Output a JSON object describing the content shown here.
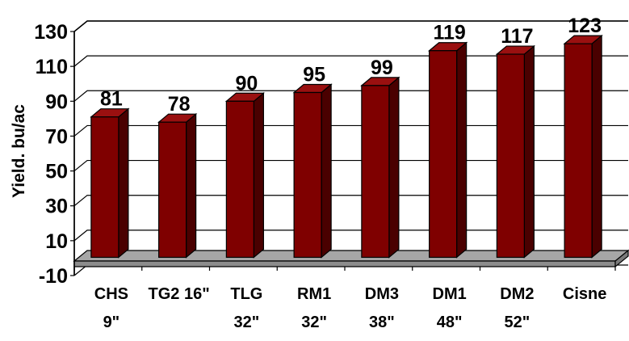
{
  "chart_data": {
    "type": "bar",
    "title": "",
    "xlabel": "",
    "ylabel": "Yield. bu/ac",
    "categories": [
      [
        "CHS",
        "9\""
      ],
      [
        "TG2 16\""
      ],
      [
        "TLG",
        "32\""
      ],
      [
        "RM1",
        "32\""
      ],
      [
        "DM3",
        "38\""
      ],
      [
        "DM1",
        "48\""
      ],
      [
        "DM2",
        "52\""
      ],
      [
        "Cisne"
      ]
    ],
    "values": [
      81,
      78,
      90,
      95,
      99,
      119,
      117,
      123
    ],
    "data_labels": [
      "81",
      "78",
      "90",
      "95",
      "99",
      "119",
      "117",
      "123"
    ],
    "yticks": [
      "130",
      "110",
      "90",
      "70",
      "50",
      "30",
      "10",
      "-10"
    ],
    "ylim": [
      -10,
      130
    ],
    "grid": true,
    "legend": "none",
    "bar_color": "#7f0000",
    "bar_side_color": "#4a0000",
    "bar_top_color": "#9a1010",
    "floor_color": "#a6a6a6"
  }
}
